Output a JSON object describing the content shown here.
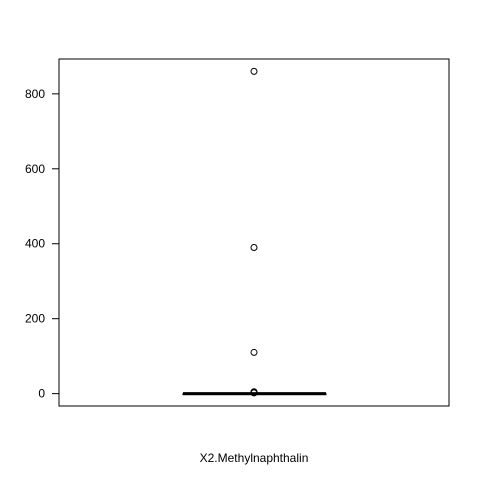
{
  "chart_data": {
    "type": "box",
    "xlabel": "X2.Methylnaphthalin",
    "ylim": [
      -33,
      893
    ],
    "yticks": [
      0,
      200,
      400,
      600,
      800
    ],
    "grid": false,
    "box": {
      "q1": 0,
      "median": 0,
      "q3": 0,
      "whisker_low": 0,
      "whisker_high": 0
    },
    "outliers": [
      860,
      390,
      110,
      5,
      3,
      2
    ]
  }
}
